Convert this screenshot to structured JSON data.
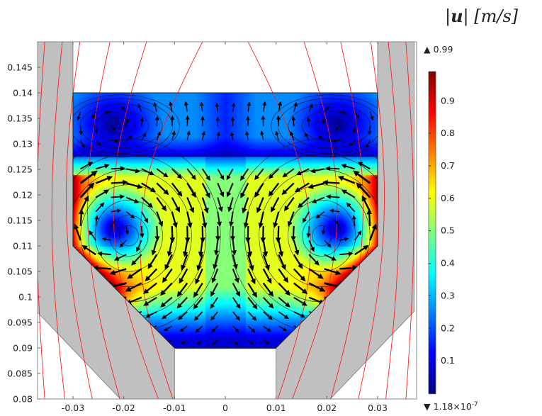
{
  "chart_data": {
    "type": "heatmap",
    "description_kind": "2D field surface plot with streamlines, arrows and contour lines",
    "colorbar": {
      "title": "|u| [m/s]",
      "title_parts": {
        "symbol": "u",
        "unit": "[m/s]"
      },
      "max_label": "0.99",
      "min_label": "1.18×10",
      "min_exponent": "-7",
      "range": [
        1.18e-07,
        0.99
      ],
      "ticks": [
        "0.1",
        "0.2",
        "0.3",
        "0.4",
        "0.5",
        "0.6",
        "0.7",
        "0.8",
        "0.9"
      ],
      "tick_values": [
        0.1,
        0.2,
        0.3,
        0.4,
        0.5,
        0.6,
        0.7,
        0.8,
        0.9
      ],
      "colormap": "jet"
    },
    "x_axis": {
      "ticks": [
        "-0.03",
        "-0.02",
        "-0.01",
        "0",
        "0.01",
        "0.02",
        "0.03"
      ],
      "tick_values": [
        -0.03,
        -0.02,
        -0.01,
        0,
        0.01,
        0.02,
        0.03
      ],
      "range": [
        -0.037,
        0.0377
      ]
    },
    "y_axis": {
      "ticks": [
        "0.08",
        "0.085",
        "0.09",
        "0.095",
        "0.1",
        "0.105",
        "0.11",
        "0.115",
        "0.12",
        "0.125",
        "0.13",
        "0.135",
        "0.14",
        "0.145"
      ],
      "tick_values": [
        0.08,
        0.085,
        0.09,
        0.095,
        0.1,
        0.105,
        0.11,
        0.115,
        0.12,
        0.125,
        0.13,
        0.135,
        0.14,
        0.145
      ],
      "range": [
        0.08,
        0.15
      ]
    },
    "grid": false,
    "legend": "right",
    "colors": {
      "solid": "#c0c0c0",
      "contour": "#ff2020",
      "streamline": "#000000"
    }
  }
}
